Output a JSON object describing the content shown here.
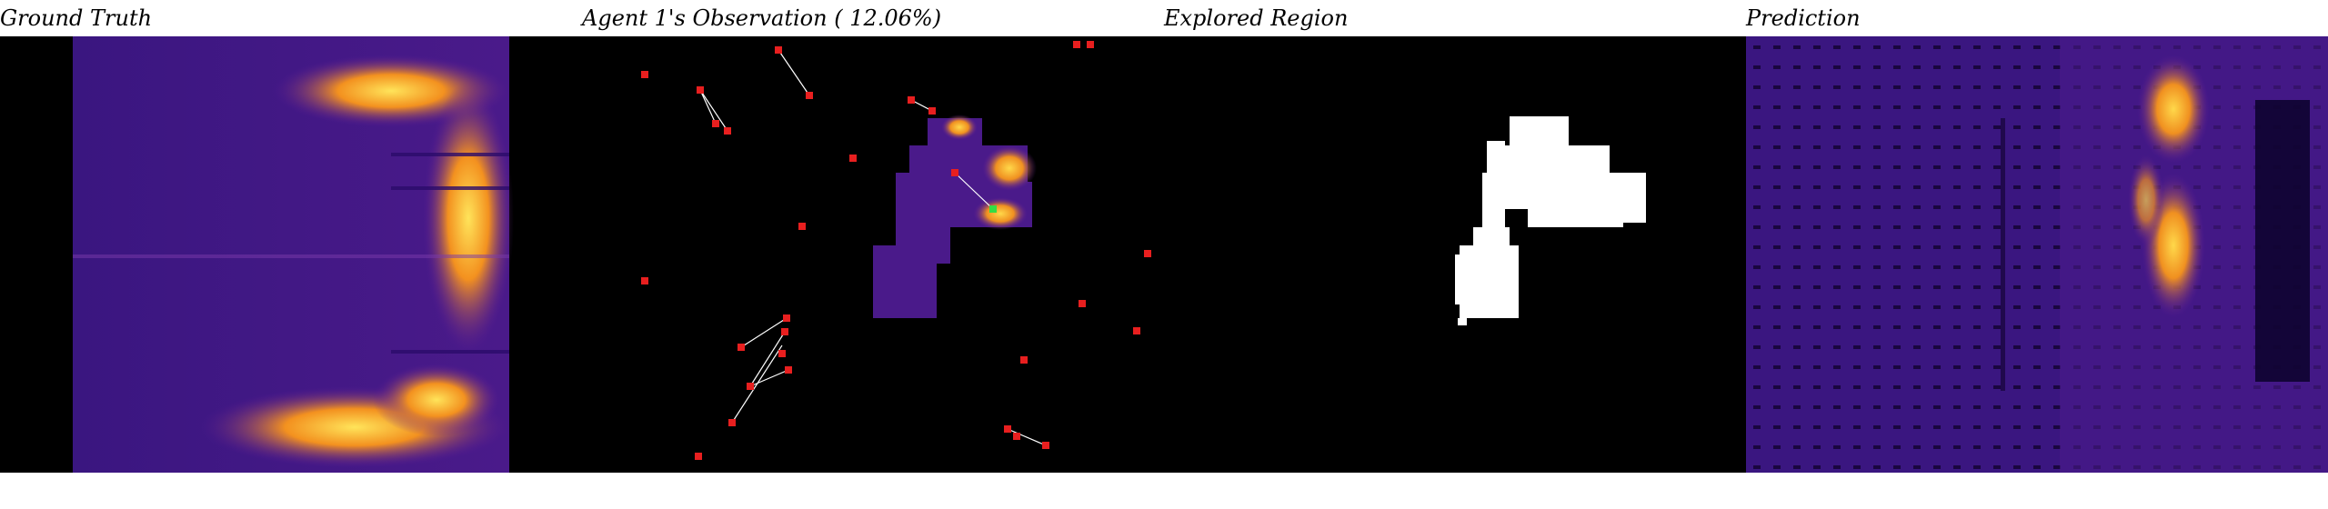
{
  "panels": [
    {
      "key": "ground_truth",
      "title": "Ground Truth"
    },
    {
      "key": "observation",
      "title": "Agent 1's Observation ( 12.06%)",
      "coverage_percent": 12.06
    },
    {
      "key": "explored",
      "title": "Explored Region"
    },
    {
      "key": "prediction",
      "title": "Prediction"
    }
  ],
  "colors": {
    "heat_low": "#2a0b6a",
    "heat_mid": "#5b1a9a",
    "heat_high": "#f6a51c",
    "heat_peak": "#ffd84a",
    "agent_marker": "#e81f1f",
    "agent_current": "#33dd44",
    "trail": "#ffffff",
    "explored": "#ffffff"
  }
}
